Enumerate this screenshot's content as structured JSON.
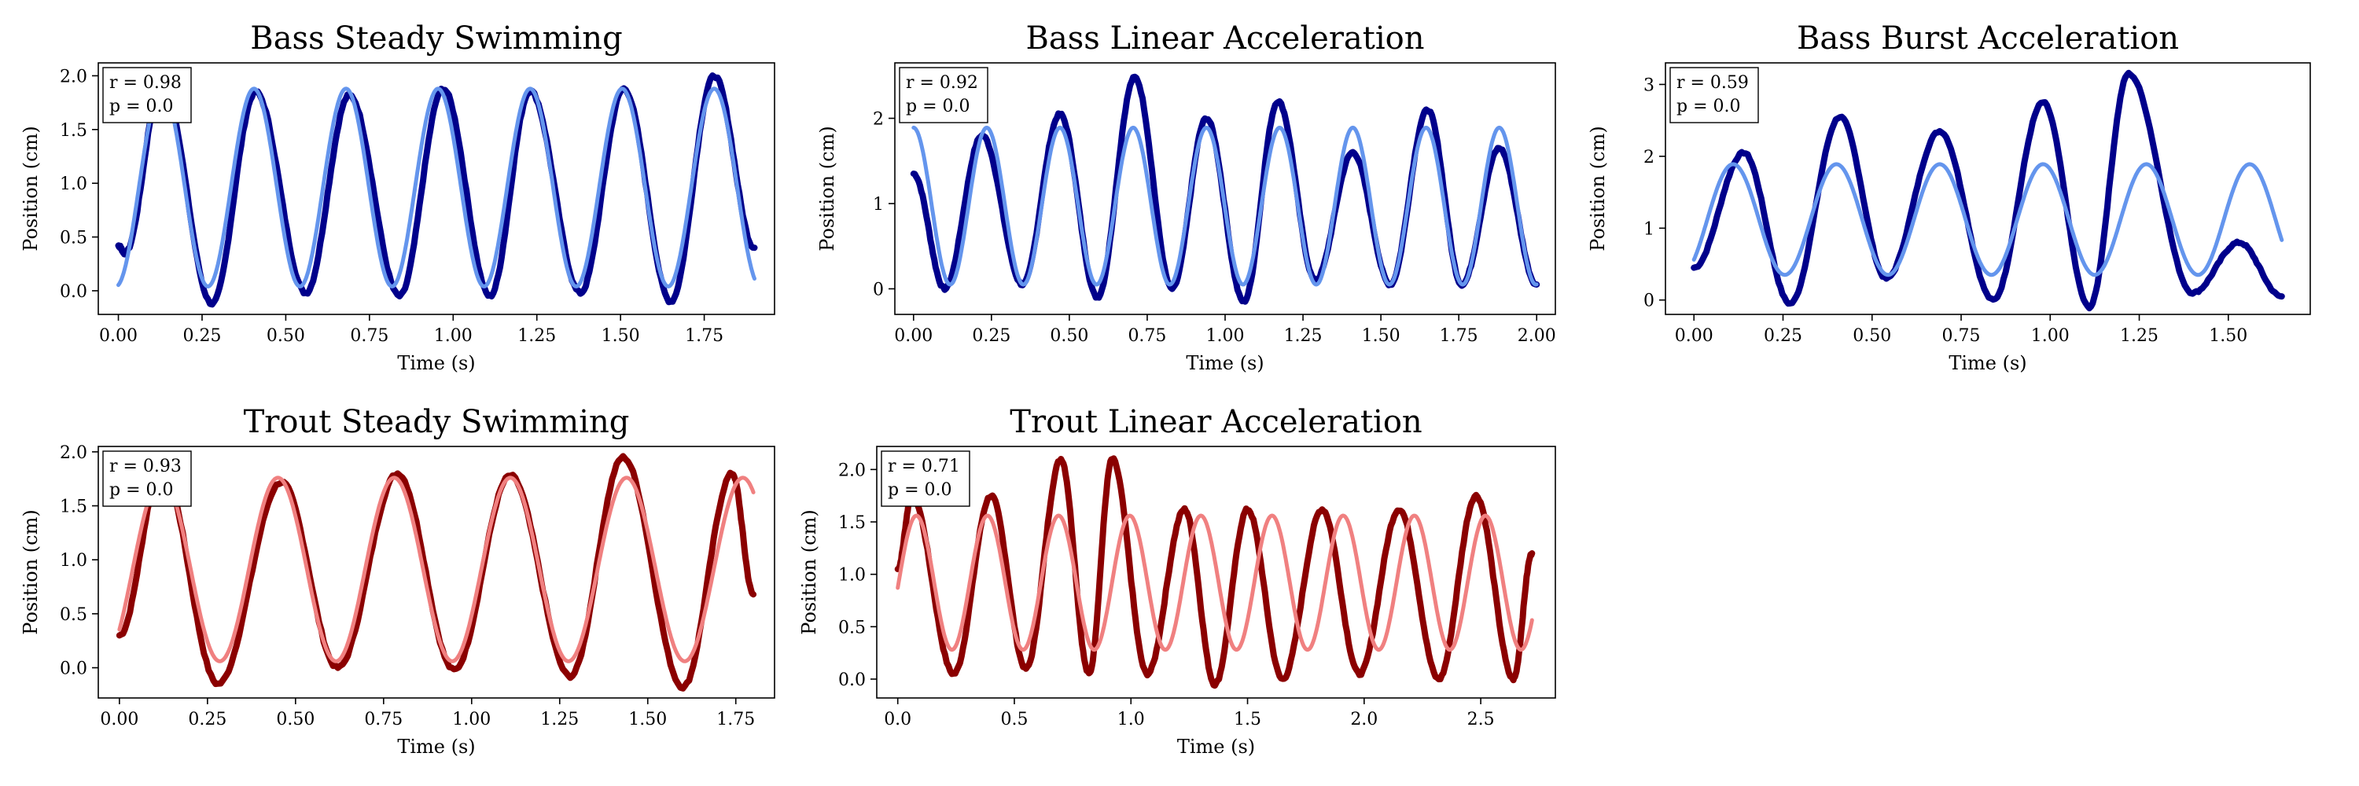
{
  "chart_data": [
    {
      "type": "line",
      "title": "Bass Steady Swimming",
      "xlabel": "Time (s)",
      "ylabel": "Position (cm)",
      "xlim": [
        -0.06,
        1.96
      ],
      "ylim": [
        -0.22,
        2.12
      ],
      "xticks": [
        0.0,
        0.25,
        0.5,
        0.75,
        1.0,
        1.25,
        1.5,
        1.75
      ],
      "xtick_labels": [
        "0.00",
        "0.25",
        "0.50",
        "0.75",
        "1.00",
        "1.25",
        "1.50",
        "1.75"
      ],
      "yticks": [
        0.0,
        0.5,
        1.0,
        1.5,
        2.0
      ],
      "ytick_labels": [
        "0.0",
        "0.5",
        "1.0",
        "1.5",
        "2.0"
      ],
      "annotation": [
        "r = 0.98",
        "p = 0.0"
      ],
      "series": [
        {
          "color": "#00008b",
          "role": "measured",
          "x": [
            0.0,
            0.02,
            0.13,
            0.28,
            0.41,
            0.56,
            0.69,
            0.84,
            0.97,
            1.11,
            1.23,
            1.38,
            1.51,
            1.65,
            1.78,
            1.9
          ],
          "y": [
            0.42,
            0.35,
            1.95,
            -0.12,
            1.85,
            -0.02,
            1.82,
            -0.05,
            1.88,
            -0.05,
            1.86,
            -0.02,
            1.88,
            -0.1,
            2.0,
            0.4
          ]
        },
        {
          "color": "#6495ed",
          "role": "fit",
          "amplitude": 0.92,
          "offset": 0.96,
          "period": 0.275,
          "phase_peak": 0.13,
          "x_start": 0.0,
          "x_end": 1.9
        }
      ]
    },
    {
      "type": "line",
      "title": "Bass Linear Acceleration",
      "xlabel": "Time (s)",
      "ylabel": "Position (cm)",
      "xlim": [
        -0.06,
        2.06
      ],
      "ylim": [
        -0.3,
        2.65
      ],
      "xticks": [
        0.0,
        0.25,
        0.5,
        0.75,
        1.0,
        1.25,
        1.5,
        1.75,
        2.0
      ],
      "xtick_labels": [
        "0.00",
        "0.25",
        "0.50",
        "0.75",
        "1.00",
        "1.25",
        "1.50",
        "1.75",
        "2.00"
      ],
      "yticks": [
        0,
        1,
        2
      ],
      "ytick_labels": [
        "0",
        "1",
        "2"
      ],
      "annotation": [
        "r = 0.92",
        "p = 0.0"
      ],
      "series": [
        {
          "color": "#00008b",
          "role": "measured",
          "x": [
            0.0,
            0.1,
            0.22,
            0.35,
            0.47,
            0.59,
            0.71,
            0.83,
            0.94,
            1.06,
            1.17,
            1.29,
            1.41,
            1.53,
            1.65,
            1.76,
            1.88,
            2.0
          ],
          "y": [
            1.35,
            0.0,
            1.8,
            0.05,
            2.05,
            -0.1,
            2.48,
            0.0,
            2.0,
            -0.15,
            2.2,
            0.1,
            1.6,
            0.05,
            2.1,
            0.05,
            1.65,
            0.05
          ]
        },
        {
          "color": "#6495ed",
          "role": "fit",
          "amplitude": 0.92,
          "offset": 0.97,
          "period": 0.235,
          "phase_peak": 0.235,
          "x_start": 0.0,
          "x_end": 2.0
        }
      ]
    },
    {
      "type": "line",
      "title": "Bass Burst Acceleration",
      "xlabel": "Time (s)",
      "ylabel": "Position (cm)",
      "xlim": [
        -0.08,
        1.73
      ],
      "ylim": [
        -0.2,
        3.3
      ],
      "xticks": [
        0.0,
        0.25,
        0.5,
        0.75,
        1.0,
        1.25,
        1.5
      ],
      "xtick_labels": [
        "0.00",
        "0.25",
        "0.50",
        "0.75",
        "1.00",
        "1.25",
        "1.50"
      ],
      "yticks": [
        0,
        1,
        2,
        3
      ],
      "ytick_labels": [
        "0",
        "1",
        "2",
        "3"
      ],
      "annotation": [
        "r = 0.59",
        "p = 0.0"
      ],
      "series": [
        {
          "color": "#00008b",
          "role": "measured",
          "x": [
            0.0,
            0.14,
            0.27,
            0.41,
            0.54,
            0.69,
            0.84,
            0.98,
            1.11,
            1.22,
            1.4,
            1.53,
            1.65
          ],
          "y": [
            0.45,
            2.05,
            -0.05,
            2.55,
            0.3,
            2.35,
            0.0,
            2.75,
            -0.1,
            3.15,
            0.1,
            0.8,
            0.05
          ]
        },
        {
          "color": "#6495ed",
          "role": "fit",
          "amplitude": 0.77,
          "offset": 1.12,
          "period": 0.29,
          "phase_peak": 0.11,
          "x_start": 0.0,
          "x_end": 1.65
        }
      ]
    },
    {
      "type": "line",
      "title": "Trout Steady Swimming",
      "xlabel": "Time (s)",
      "ylabel": "Position (cm)",
      "xlim": [
        -0.06,
        1.86
      ],
      "ylim": [
        -0.28,
        2.05
      ],
      "xticks": [
        0.0,
        0.25,
        0.5,
        0.75,
        1.0,
        1.25,
        1.5,
        1.75
      ],
      "xtick_labels": [
        "0.00",
        "0.25",
        "0.50",
        "0.75",
        "1.00",
        "1.25",
        "1.50",
        "1.75"
      ],
      "yticks": [
        0.0,
        0.5,
        1.0,
        1.5,
        2.0
      ],
      "ytick_labels": [
        "0.0",
        "0.5",
        "1.0",
        "1.5",
        "2.0"
      ],
      "annotation": [
        "r = 0.93",
        "p = 0.0"
      ],
      "series": [
        {
          "color": "#8b0000",
          "role": "measured",
          "x": [
            0.0,
            0.12,
            0.28,
            0.46,
            0.62,
            0.79,
            0.95,
            1.11,
            1.28,
            1.43,
            1.6,
            1.74,
            1.8
          ],
          "y": [
            0.3,
            1.85,
            -0.15,
            1.72,
            0.0,
            1.8,
            -0.02,
            1.78,
            -0.08,
            1.95,
            -0.18,
            1.8,
            0.68
          ]
        },
        {
          "color": "#f08080",
          "role": "fit",
          "amplitude": 0.85,
          "offset": 0.91,
          "period": 0.33,
          "phase_peak": 0.12,
          "x_start": 0.0,
          "x_end": 1.8
        }
      ]
    },
    {
      "type": "line",
      "title": "Trout Linear Acceleration",
      "xlabel": "Time (s)",
      "ylabel": "Position (cm)",
      "xlim": [
        -0.09,
        2.82
      ],
      "ylim": [
        -0.18,
        2.22
      ],
      "xticks": [
        0.0,
        0.5,
        1.0,
        1.5,
        2.0,
        2.5
      ],
      "xtick_labels": [
        "0.0",
        "0.5",
        "1.0",
        "1.5",
        "2.0",
        "2.5"
      ],
      "yticks": [
        0.0,
        0.5,
        1.0,
        1.5,
        2.0
      ],
      "ytick_labels": [
        "0.0",
        "0.5",
        "1.0",
        "1.5",
        "2.0"
      ],
      "annotation": [
        "r = 0.71",
        "p = 0.0"
      ],
      "series": [
        {
          "color": "#8b0000",
          "role": "measured",
          "x": [
            0.0,
            0.06,
            0.24,
            0.4,
            0.55,
            0.7,
            0.82,
            0.92,
            1.07,
            1.23,
            1.36,
            1.5,
            1.65,
            1.82,
            1.98,
            2.15,
            2.32,
            2.48,
            2.64,
            2.72
          ],
          "y": [
            1.05,
            1.75,
            0.05,
            1.75,
            0.1,
            2.1,
            0.05,
            2.1,
            0.05,
            1.62,
            -0.05,
            1.62,
            0.0,
            1.62,
            0.05,
            1.62,
            0.0,
            1.75,
            0.0,
            1.2
          ]
        },
        {
          "color": "#f08080",
          "role": "fit",
          "amplitude": 0.64,
          "offset": 0.92,
          "period": 0.305,
          "phase_peak": 0.08,
          "x_start": 0.0,
          "x_end": 2.72
        }
      ]
    }
  ]
}
